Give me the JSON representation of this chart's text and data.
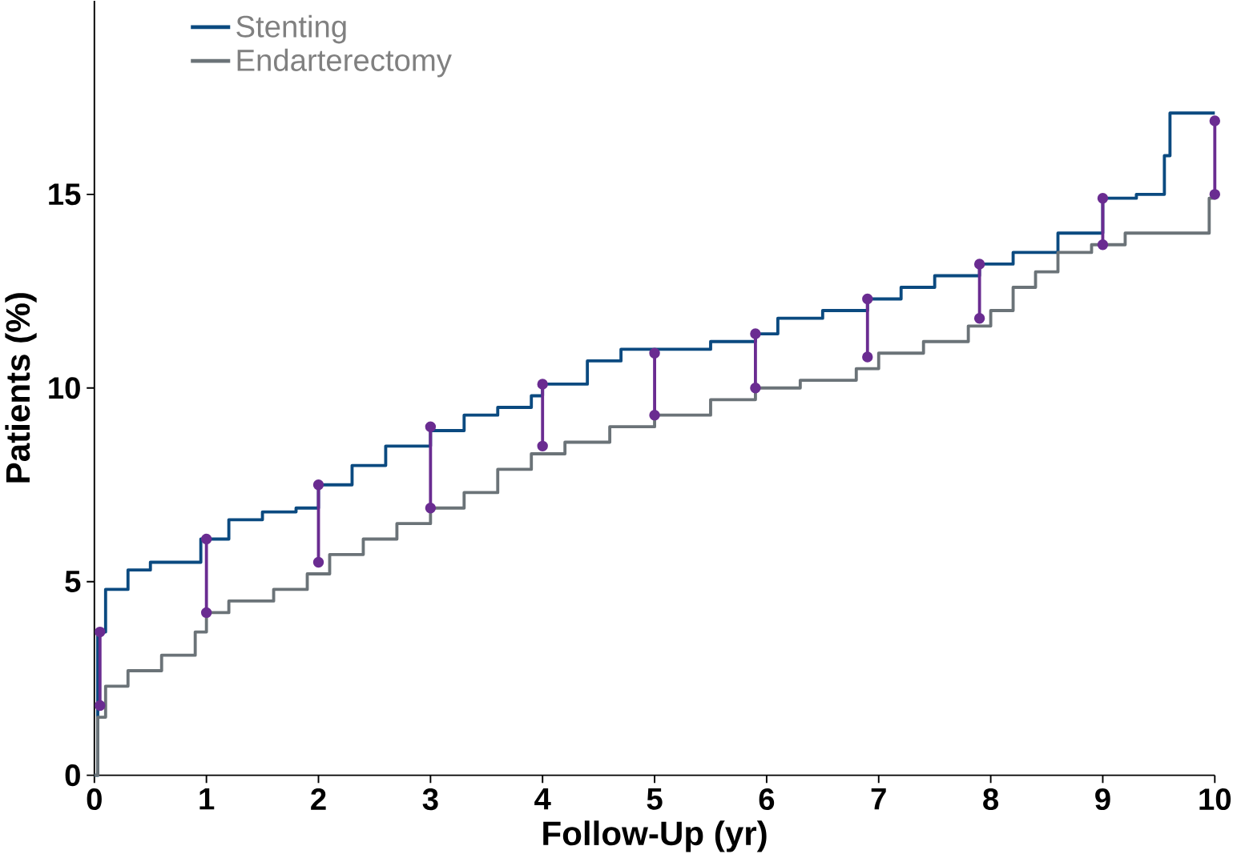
{
  "chart_data": {
    "type": "step",
    "xlabel": "Follow-Up (yr)",
    "ylabel": "Patients (%)",
    "xlim": [
      0,
      10
    ],
    "ylim": [
      0,
      20
    ],
    "xticks": [
      0,
      1,
      2,
      3,
      4,
      5,
      6,
      7,
      8,
      9,
      10
    ],
    "yticks": [
      0,
      5,
      10,
      15
    ],
    "legend": "top left",
    "grid": false,
    "series": [
      {
        "name": "Stenting",
        "color": "#0b4a80",
        "x": [
          0,
          0.03,
          0.1,
          0.3,
          0.5,
          0.95,
          1.2,
          1.5,
          1.8,
          2.0,
          2.3,
          2.6,
          3.0,
          3.3,
          3.6,
          3.9,
          4.0,
          4.4,
          4.7,
          5.5,
          5.9,
          6.1,
          6.5,
          6.9,
          7.2,
          7.5,
          7.9,
          8.2,
          8.6,
          9.0,
          9.3,
          9.55,
          9.6,
          10
        ],
        "values": [
          0,
          3.7,
          4.8,
          5.3,
          5.5,
          6.1,
          6.6,
          6.8,
          6.9,
          7.5,
          8.0,
          8.5,
          8.9,
          9.3,
          9.5,
          9.8,
          10.1,
          10.7,
          11.0,
          11.2,
          11.4,
          11.8,
          12.0,
          12.3,
          12.6,
          12.9,
          13.2,
          13.5,
          14.0,
          14.9,
          15.0,
          16.0,
          17.1,
          17.1
        ]
      },
      {
        "name": "Endarterectomy",
        "color": "#6b7378",
        "x": [
          0,
          0.03,
          0.1,
          0.3,
          0.6,
          0.9,
          1.0,
          1.2,
          1.6,
          1.9,
          2.1,
          2.4,
          2.7,
          3.0,
          3.3,
          3.6,
          3.9,
          4.2,
          4.6,
          5.0,
          5.5,
          5.9,
          6.3,
          6.8,
          7.0,
          7.4,
          7.8,
          8.0,
          8.2,
          8.4,
          8.6,
          8.9,
          9.2,
          9.95,
          10
        ],
        "values": [
          0,
          1.5,
          2.3,
          2.7,
          3.1,
          3.7,
          4.2,
          4.5,
          4.8,
          5.2,
          5.7,
          6.1,
          6.5,
          6.9,
          7.3,
          7.9,
          8.3,
          8.6,
          9.0,
          9.3,
          9.7,
          10.0,
          10.2,
          10.5,
          10.9,
          11.2,
          11.6,
          12.0,
          12.6,
          13.0,
          13.5,
          13.7,
          14.0,
          14.9,
          15.0
        ]
      },
      {
        "type": "line",
        "color": "#6a2c91",
        "marker": "circle",
        "x": [
          0.05,
          0.05
        ],
        "values": [
          3.7,
          1.8
        ]
      },
      {
        "type": "line",
        "color": "#6a2c91",
        "marker": "circle",
        "x": [
          1,
          1
        ],
        "values": [
          6.1,
          4.2
        ]
      },
      {
        "type": "line",
        "color": "#6a2c91",
        "marker": "circle",
        "x": [
          2,
          2
        ],
        "values": [
          7.5,
          5.5
        ]
      },
      {
        "type": "line",
        "color": "#6a2c91",
        "marker": "circle",
        "x": [
          3,
          3
        ],
        "values": [
          9.0,
          6.9
        ]
      },
      {
        "type": "line",
        "color": "#6a2c91",
        "marker": "circle",
        "x": [
          4,
          4
        ],
        "values": [
          10.1,
          8.5
        ]
      },
      {
        "type": "line",
        "color": "#6a2c91",
        "marker": "circle",
        "x": [
          5,
          5
        ],
        "values": [
          10.9,
          9.3
        ]
      },
      {
        "type": "line",
        "color": "#6a2c91",
        "marker": "circle",
        "x": [
          5.9,
          5.9
        ],
        "values": [
          11.4,
          10.0
        ]
      },
      {
        "type": "line",
        "color": "#6a2c91",
        "marker": "circle",
        "x": [
          6.9,
          6.9
        ],
        "values": [
          12.3,
          10.8
        ]
      },
      {
        "type": "line",
        "color": "#6a2c91",
        "marker": "circle",
        "x": [
          7.9,
          7.9
        ],
        "values": [
          13.2,
          11.8
        ]
      },
      {
        "type": "line",
        "color": "#6a2c91",
        "marker": "circle",
        "x": [
          9,
          9
        ],
        "values": [
          14.9,
          13.7
        ]
      },
      {
        "type": "line",
        "color": "#6a2c91",
        "marker": "circle",
        "x": [
          10,
          10
        ],
        "values": [
          16.9,
          15.0
        ]
      }
    ]
  }
}
